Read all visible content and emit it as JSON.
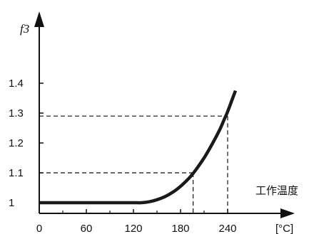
{
  "chart_data": {
    "type": "line",
    "ylabel": "f3",
    "xlabel": "工作温度",
    "x_unit": "[°C]",
    "x_ticks": [
      0,
      60,
      120,
      180,
      240
    ],
    "y_ticks": [
      1,
      1.1,
      1.2,
      1.3,
      1.4
    ],
    "xlim": [
      0,
      270
    ],
    "ylim": [
      0.97,
      1.52
    ],
    "grid": false,
    "series": [
      {
        "x": [
          0,
          20,
          40,
          60,
          80,
          100,
          120,
          130,
          140,
          150,
          160,
          170,
          180,
          190,
          195,
          200,
          210,
          220,
          230,
          235,
          240,
          245,
          250
        ],
        "values": [
          1.0,
          1.0,
          1.0,
          1.0,
          1.0,
          1.0,
          1.0,
          1.0,
          1.003,
          1.01,
          1.02,
          1.035,
          1.055,
          1.08,
          1.095,
          1.112,
          1.15,
          1.195,
          1.245,
          1.275,
          1.305,
          1.34,
          1.375
        ]
      }
    ],
    "reference_lines": [
      {
        "x": 196,
        "y": 1.1
      },
      {
        "x": 240,
        "y": 1.29
      }
    ],
    "colors": {
      "curve": "#1a1a1a",
      "axis": "#111111",
      "reference": "#111111"
    }
  }
}
